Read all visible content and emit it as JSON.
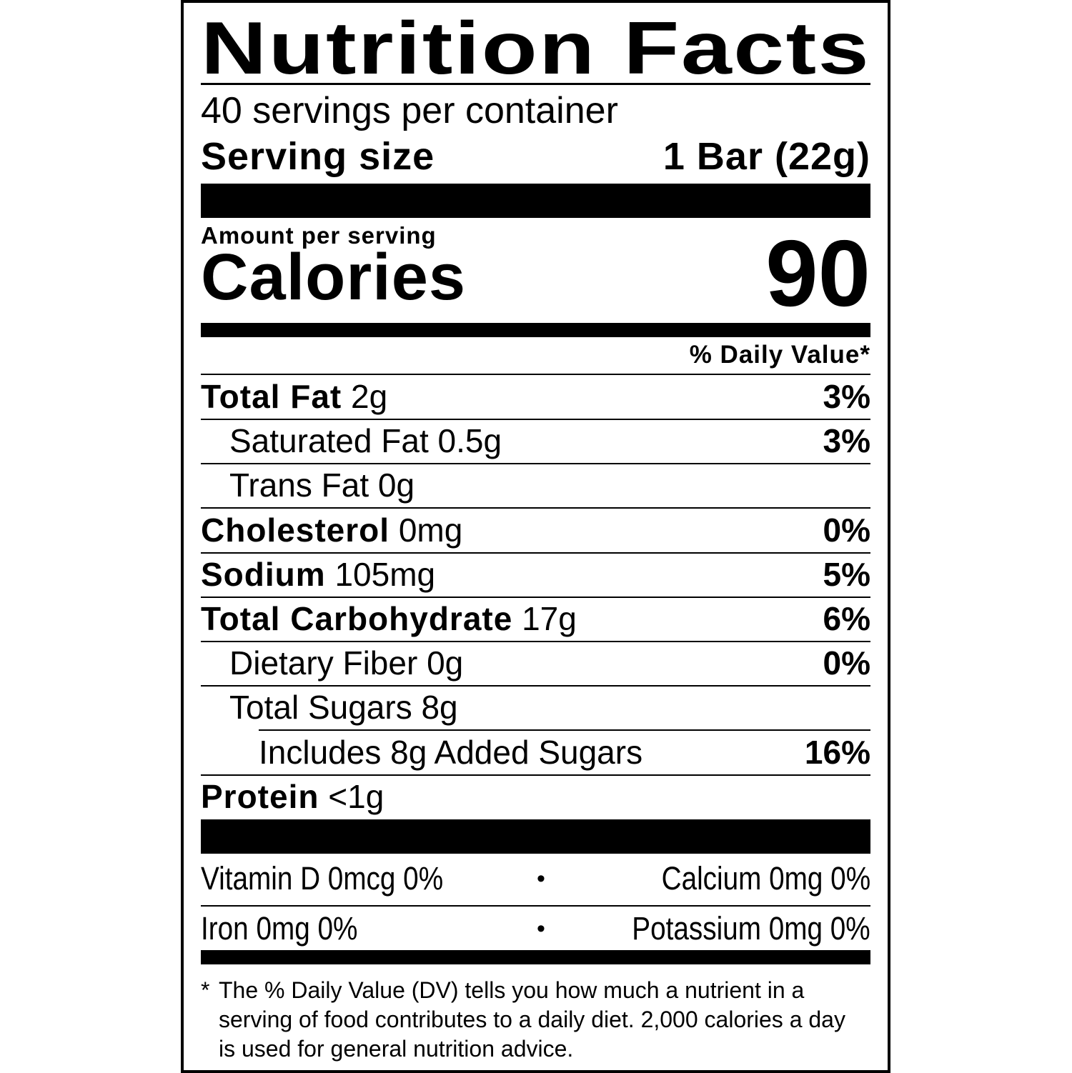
{
  "title": "Nutrition Facts",
  "servings_per_container": "40 servings per container",
  "serving_size": {
    "label": "Serving size",
    "value": "1 Bar (22g)"
  },
  "amount_per_serving": "Amount per serving",
  "calories": {
    "label": "Calories",
    "value": "90"
  },
  "daily_value_header": "% Daily Value*",
  "nutrients": [
    {
      "name": "Total Fat",
      "amount": "2g",
      "dv": "3%"
    },
    {
      "name": "Saturated Fat 0.5g",
      "amount": "",
      "dv": "3%"
    },
    {
      "name": "Trans Fat 0g",
      "amount": "",
      "dv": ""
    },
    {
      "name": "Cholesterol",
      "amount": "0mg",
      "dv": "0%"
    },
    {
      "name": "Sodium",
      "amount": "105mg",
      "dv": "5%"
    },
    {
      "name": "Total Carbohydrate",
      "amount": "17g",
      "dv": "6%"
    },
    {
      "name": "Dietary Fiber 0g",
      "amount": "",
      "dv": "0%"
    },
    {
      "name": "Total Sugars 8g",
      "amount": "",
      "dv": ""
    },
    {
      "name": "Includes 8g Added Sugars",
      "amount": "",
      "dv": "16%"
    },
    {
      "name": "Protein",
      "amount": "<1g",
      "dv": ""
    }
  ],
  "vitamins": [
    {
      "left": "Vitamin D 0mcg 0%",
      "sep": "•",
      "right": "Calcium 0mg 0%"
    },
    {
      "left": "Iron 0mg 0%",
      "sep": "•",
      "right": "Potassium 0mg 0%"
    }
  ],
  "footnote": {
    "star": "*",
    "text": "The % Daily Value (DV) tells you how much a nutrient in a serving of food contributes to a daily diet. 2,000 calories a day is used for general nutrition advice."
  }
}
